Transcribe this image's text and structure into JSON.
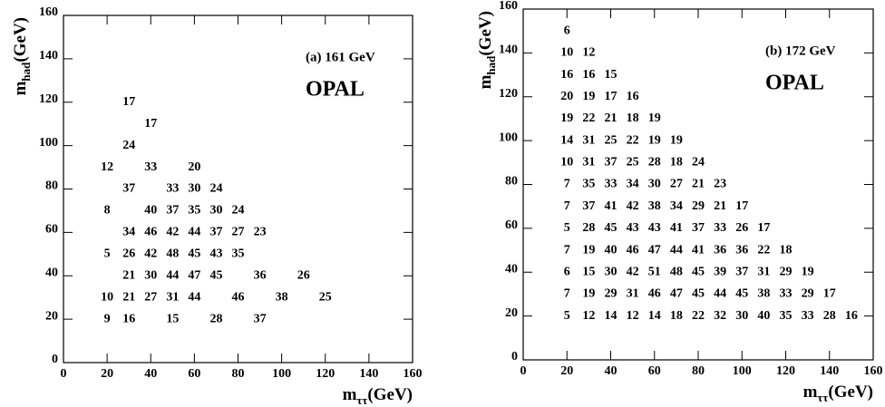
{
  "chart_data": [
    {
      "type": "scatter",
      "annotation": "(a) 161 GeV",
      "brand": "OPAL",
      "xlabel_main": "m",
      "xlabel_sub": "ττ",
      "xlabel_unit": "(GeV)",
      "ylabel_main": "m",
      "ylabel_sub": "had",
      "ylabel_unit": "(GeV)",
      "xlim": [
        0,
        160
      ],
      "ylim": [
        0,
        160
      ],
      "xticks": [
        0,
        20,
        40,
        60,
        80,
        100,
        120,
        140,
        160
      ],
      "yticks": [
        0,
        20,
        40,
        60,
        80,
        100,
        120,
        140,
        160
      ],
      "x": [
        20,
        30,
        50,
        70,
        90,
        20,
        30,
        40,
        50,
        60,
        80,
        100,
        120,
        30,
        40,
        50,
        60,
        70,
        90,
        110,
        20,
        30,
        40,
        50,
        60,
        70,
        80,
        30,
        40,
        50,
        60,
        70,
        80,
        90,
        20,
        40,
        50,
        60,
        70,
        80,
        30,
        50,
        60,
        70,
        20,
        40,
        60,
        30,
        40,
        30
      ],
      "y": [
        20,
        20,
        20,
        20,
        20,
        30,
        30,
        30,
        30,
        30,
        30,
        30,
        30,
        40,
        40,
        40,
        40,
        40,
        40,
        40,
        50,
        50,
        50,
        50,
        50,
        50,
        50,
        60,
        60,
        60,
        60,
        60,
        60,
        60,
        70,
        70,
        70,
        70,
        70,
        70,
        80,
        80,
        80,
        80,
        90,
        90,
        90,
        100,
        110,
        120
      ],
      "values": [
        9,
        16,
        15,
        28,
        37,
        10,
        21,
        27,
        31,
        44,
        46,
        38,
        25,
        21,
        30,
        44,
        47,
        45,
        36,
        26,
        5,
        26,
        42,
        48,
        45,
        43,
        35,
        34,
        46,
        42,
        44,
        37,
        27,
        23,
        8,
        40,
        37,
        35,
        30,
        24,
        37,
        33,
        30,
        24,
        12,
        33,
        20,
        24,
        17,
        17
      ]
    },
    {
      "type": "scatter",
      "annotation": "(b) 172 GeV",
      "brand": "OPAL",
      "xlabel_main": "m",
      "xlabel_sub": "ττ",
      "xlabel_unit": "(GeV)",
      "ylabel_main": "m",
      "ylabel_sub": "had",
      "ylabel_unit": "(GeV)",
      "xlim": [
        0,
        160
      ],
      "ylim": [
        0,
        160
      ],
      "xticks": [
        0,
        20,
        40,
        60,
        80,
        100,
        120,
        140,
        160
      ],
      "yticks": [
        0,
        20,
        40,
        60,
        80,
        100,
        120,
        140,
        160
      ],
      "x": [
        20,
        30,
        40,
        50,
        60,
        70,
        80,
        90,
        100,
        110,
        120,
        130,
        140,
        150,
        20,
        30,
        40,
        50,
        60,
        70,
        80,
        90,
        100,
        110,
        120,
        130,
        140,
        20,
        30,
        40,
        50,
        60,
        70,
        80,
        90,
        100,
        110,
        120,
        130,
        20,
        30,
        40,
        50,
        60,
        70,
        80,
        90,
        100,
        110,
        120,
        20,
        30,
        40,
        50,
        60,
        70,
        80,
        90,
        100,
        110,
        20,
        30,
        40,
        50,
        60,
        70,
        80,
        90,
        100,
        20,
        30,
        40,
        50,
        60,
        70,
        80,
        90,
        20,
        30,
        40,
        50,
        60,
        70,
        80,
        20,
        30,
        40,
        50,
        60,
        70,
        20,
        30,
        40,
        50,
        60,
        20,
        30,
        40,
        50,
        20,
        30,
        40,
        20,
        30,
        20
      ],
      "y": [
        20,
        20,
        20,
        20,
        20,
        20,
        20,
        20,
        20,
        20,
        20,
        20,
        20,
        20,
        30,
        30,
        30,
        30,
        30,
        30,
        30,
        30,
        30,
        30,
        30,
        30,
        30,
        40,
        40,
        40,
        40,
        40,
        40,
        40,
        40,
        40,
        40,
        40,
        40,
        50,
        50,
        50,
        50,
        50,
        50,
        50,
        50,
        50,
        50,
        50,
        60,
        60,
        60,
        60,
        60,
        60,
        60,
        60,
        60,
        60,
        70,
        70,
        70,
        70,
        70,
        70,
        70,
        70,
        70,
        80,
        80,
        80,
        80,
        80,
        80,
        80,
        80,
        90,
        90,
        90,
        90,
        90,
        90,
        90,
        100,
        100,
        100,
        100,
        100,
        100,
        110,
        110,
        110,
        110,
        110,
        120,
        120,
        120,
        120,
        130,
        130,
        130,
        140,
        140,
        150
      ],
      "values": [
        5,
        12,
        14,
        12,
        14,
        18,
        22,
        32,
        30,
        40,
        35,
        33,
        28,
        16,
        7,
        19,
        29,
        31,
        46,
        47,
        45,
        44,
        45,
        38,
        33,
        29,
        17,
        6,
        15,
        30,
        42,
        51,
        48,
        45,
        39,
        37,
        31,
        29,
        19,
        7,
        19,
        40,
        46,
        47,
        44,
        41,
        36,
        36,
        22,
        18,
        5,
        28,
        45,
        43,
        43,
        41,
        37,
        33,
        26,
        17,
        7,
        37,
        41,
        42,
        38,
        34,
        29,
        21,
        17,
        7,
        35,
        33,
        34,
        30,
        27,
        21,
        23,
        10,
        31,
        37,
        25,
        28,
        18,
        24,
        14,
        31,
        25,
        22,
        19,
        19,
        19,
        22,
        21,
        18,
        19,
        20,
        19,
        17,
        16,
        16,
        16,
        15,
        10,
        12,
        6
      ]
    }
  ]
}
